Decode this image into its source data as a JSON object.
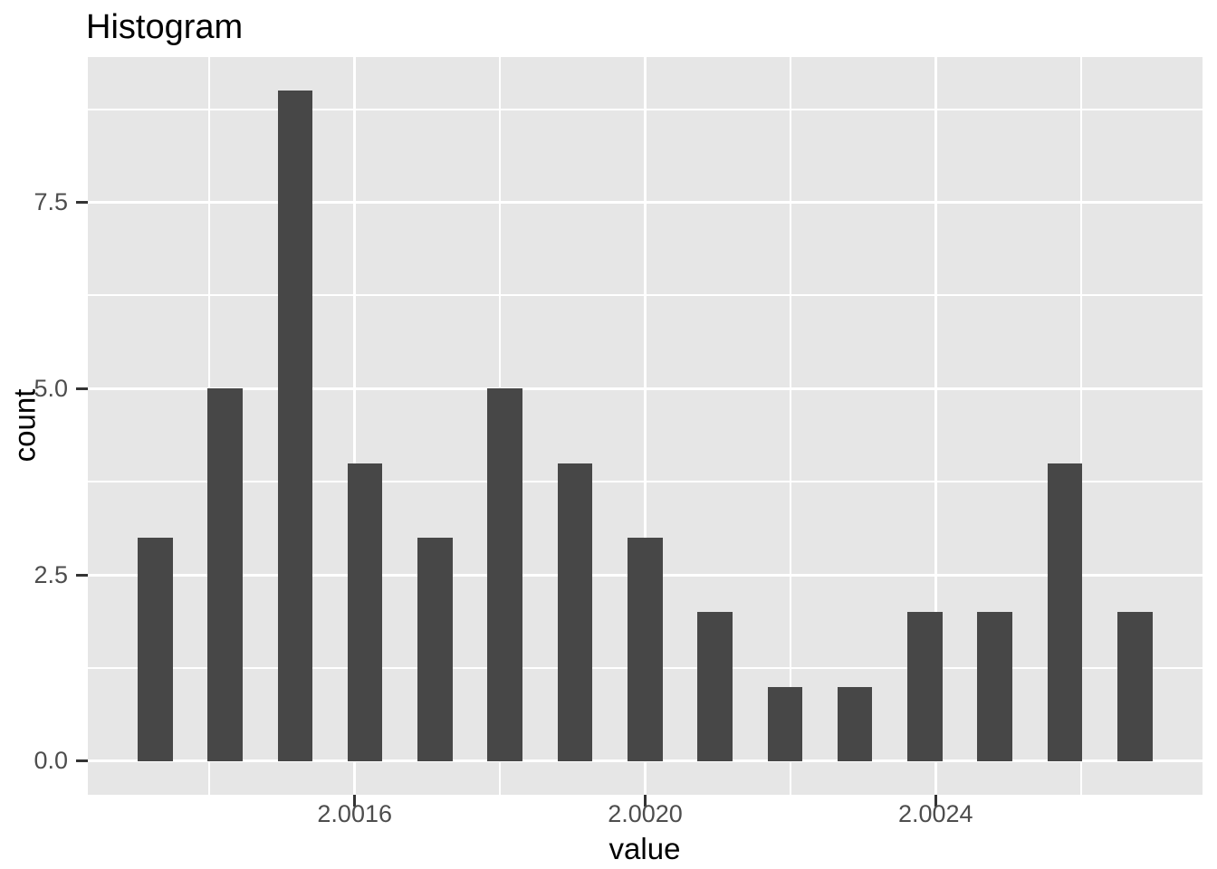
{
  "chart_data": {
    "type": "bar",
    "subtype": "histogram",
    "title": "Histogram",
    "xlabel": "value",
    "ylabel": "count",
    "bin_centers": [
      2.0013251,
      2.0014215,
      2.0015179,
      2.0016142,
      2.0017106,
      2.001807,
      2.0019034,
      2.0019998,
      2.0020962,
      2.0021925,
      2.0022889,
      2.0023853,
      2.0024817,
      2.0025781,
      2.0026744
    ],
    "counts": [
      3,
      5,
      9,
      4,
      3,
      5,
      4,
      3,
      2,
      1,
      1,
      2,
      2,
      4,
      2
    ],
    "bar_width_value": 4.82e-05,
    "xlim": [
      2.0012325,
      2.0027675
    ],
    "ylim": [
      -0.45,
      9.45
    ],
    "x_ticks": [
      2.0016,
      2.002,
      2.0024
    ],
    "x_tick_labels": [
      "2.0016",
      "2.0020",
      "2.0024"
    ],
    "x_minor_ticks": [
      2.0014,
      2.0018,
      2.0022,
      2.0026
    ],
    "y_ticks": [
      0.0,
      2.5,
      5.0,
      7.5
    ],
    "y_tick_labels": [
      "0.0",
      "2.5",
      "5.0",
      "7.5"
    ],
    "y_minor_ticks": [
      1.25,
      3.75,
      6.25,
      8.75
    ],
    "grid": true,
    "legend": false,
    "colors": {
      "bar_fill": "#474747",
      "panel_bg": "#E6E6E6",
      "grid": "#FFFFFF",
      "tick_label": "#4D4D4D",
      "tick_mark": "#333333",
      "title_text": "#000000",
      "page_bg": "#FFFFFF"
    }
  }
}
